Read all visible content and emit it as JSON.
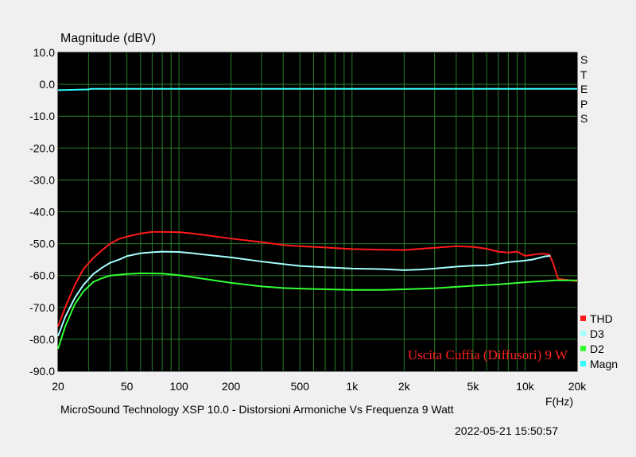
{
  "chart_data": {
    "type": "line",
    "title": "",
    "ylabel": "Magnitude (dBV)",
    "xlabel": "F(Hz)",
    "x_scale": "log",
    "xlim": [
      20,
      20000
    ],
    "ylim": [
      -90,
      10
    ],
    "y_ticks": [
      "10.0",
      "0.0",
      "-10.0",
      "-20.0",
      "-30.0",
      "-40.0",
      "-50.0",
      "-60.0",
      "-70.0",
      "-80.0",
      "-90.0"
    ],
    "x_ticks": [
      {
        "v": 20,
        "label": "20"
      },
      {
        "v": 50,
        "label": "50"
      },
      {
        "v": 100,
        "label": "100"
      },
      {
        "v": 200,
        "label": "200"
      },
      {
        "v": 500,
        "label": "500"
      },
      {
        "v": 1000,
        "label": "1k"
      },
      {
        "v": 2000,
        "label": "2k"
      },
      {
        "v": 5000,
        "label": "5k"
      },
      {
        "v": 10000,
        "label": "10k"
      },
      {
        "v": 20000,
        "label": "20k"
      }
    ],
    "grid": true,
    "annotation": "Uscita Cuffia (Diffusori) 9 W",
    "series": [
      {
        "name": "THD",
        "color": "#ff1a1a",
        "points": [
          [
            20,
            -76
          ],
          [
            22,
            -70
          ],
          [
            25,
            -63
          ],
          [
            28,
            -58
          ],
          [
            32,
            -54.5
          ],
          [
            36,
            -52
          ],
          [
            40,
            -50
          ],
          [
            45,
            -48.5
          ],
          [
            50,
            -47.8
          ],
          [
            60,
            -46.8
          ],
          [
            70,
            -46.3
          ],
          [
            80,
            -46.3
          ],
          [
            100,
            -46.4
          ],
          [
            120,
            -46.8
          ],
          [
            150,
            -47.5
          ],
          [
            200,
            -48.4
          ],
          [
            300,
            -49.5
          ],
          [
            400,
            -50.4
          ],
          [
            500,
            -50.8
          ],
          [
            700,
            -51.2
          ],
          [
            1000,
            -51.7
          ],
          [
            1500,
            -51.9
          ],
          [
            2000,
            -52
          ],
          [
            2500,
            -51.6
          ],
          [
            3000,
            -51.3
          ],
          [
            4000,
            -50.8
          ],
          [
            5000,
            -51
          ],
          [
            6000,
            -51.6
          ],
          [
            7000,
            -52.5
          ],
          [
            8000,
            -52.8
          ],
          [
            9000,
            -52.5
          ],
          [
            10000,
            -53.8
          ],
          [
            11000,
            -53.5
          ],
          [
            12000,
            -53.2
          ],
          [
            13000,
            -53.2
          ],
          [
            13800,
            -53.4
          ],
          [
            14500,
            -56
          ],
          [
            15500,
            -61
          ],
          [
            20000,
            -61.8
          ]
        ]
      },
      {
        "name": "D3",
        "color": "#a6ffff",
        "points": [
          [
            20,
            -79
          ],
          [
            22,
            -73
          ],
          [
            25,
            -67
          ],
          [
            28,
            -63
          ],
          [
            32,
            -59.5
          ],
          [
            36,
            -57.5
          ],
          [
            40,
            -56
          ],
          [
            45,
            -55
          ],
          [
            50,
            -53.9
          ],
          [
            60,
            -53
          ],
          [
            70,
            -52.7
          ],
          [
            80,
            -52.5
          ],
          [
            100,
            -52.6
          ],
          [
            120,
            -53
          ],
          [
            150,
            -53.6
          ],
          [
            200,
            -54.3
          ],
          [
            300,
            -55.6
          ],
          [
            400,
            -56.4
          ],
          [
            500,
            -57
          ],
          [
            700,
            -57.4
          ],
          [
            1000,
            -57.8
          ],
          [
            1500,
            -58
          ],
          [
            2000,
            -58.3
          ],
          [
            2500,
            -58.1
          ],
          [
            3000,
            -57.8
          ],
          [
            4000,
            -57.2
          ],
          [
            5000,
            -56.9
          ],
          [
            6000,
            -56.8
          ],
          [
            7000,
            -56.3
          ],
          [
            8000,
            -55.8
          ],
          [
            10000,
            -55.3
          ],
          [
            11000,
            -55
          ],
          [
            12000,
            -54.5
          ],
          [
            13000,
            -54
          ],
          [
            14000,
            -53.8
          ]
        ]
      },
      {
        "name": "D2",
        "color": "#33ff33",
        "points": [
          [
            20,
            -83
          ],
          [
            22,
            -76
          ],
          [
            25,
            -69
          ],
          [
            28,
            -65
          ],
          [
            32,
            -62
          ],
          [
            36,
            -60.8
          ],
          [
            40,
            -60
          ],
          [
            50,
            -59.5
          ],
          [
            60,
            -59.3
          ],
          [
            80,
            -59.4
          ],
          [
            100,
            -59.9
          ],
          [
            120,
            -60.5
          ],
          [
            150,
            -61.3
          ],
          [
            200,
            -62.3
          ],
          [
            300,
            -63.4
          ],
          [
            400,
            -63.9
          ],
          [
            500,
            -64.1
          ],
          [
            700,
            -64.3
          ],
          [
            1000,
            -64.5
          ],
          [
            1500,
            -64.5
          ],
          [
            2000,
            -64.3
          ],
          [
            3000,
            -64
          ],
          [
            5000,
            -63.2
          ],
          [
            7000,
            -62.8
          ],
          [
            10000,
            -62.1
          ],
          [
            15000,
            -61.5
          ],
          [
            20000,
            -61.5
          ]
        ]
      },
      {
        "name": "Magn",
        "color": "#33ffff",
        "points": [
          [
            20,
            -1.8
          ],
          [
            30,
            -1.6
          ],
          [
            31,
            -1.4
          ],
          [
            100,
            -1.4
          ],
          [
            1000,
            -1.4
          ],
          [
            10000,
            -1.4
          ],
          [
            20000,
            -1.4
          ]
        ]
      }
    ]
  },
  "labels": {
    "y_title": "Magnitude (dBV)",
    "steps": [
      "S",
      "T",
      "E",
      "P",
      "S"
    ],
    "x_unit": "F(Hz)",
    "caption": "MicroSound Technology XSP 10.0 - Distorsioni Armoniche Vs Frequenza 9 Watt",
    "timestamp": "2022-05-21 15:50:57"
  },
  "legend": [
    {
      "name": "THD",
      "color": "#ff1a1a"
    },
    {
      "name": "D3",
      "color": "#a6ffff"
    },
    {
      "name": "D2",
      "color": "#33ff33"
    },
    {
      "name": "Magn",
      "color": "#33ffff"
    }
  ],
  "colors": {
    "plot_bg": "#000000",
    "grid": "#2a7d2a",
    "annotation": "#ff2020"
  }
}
